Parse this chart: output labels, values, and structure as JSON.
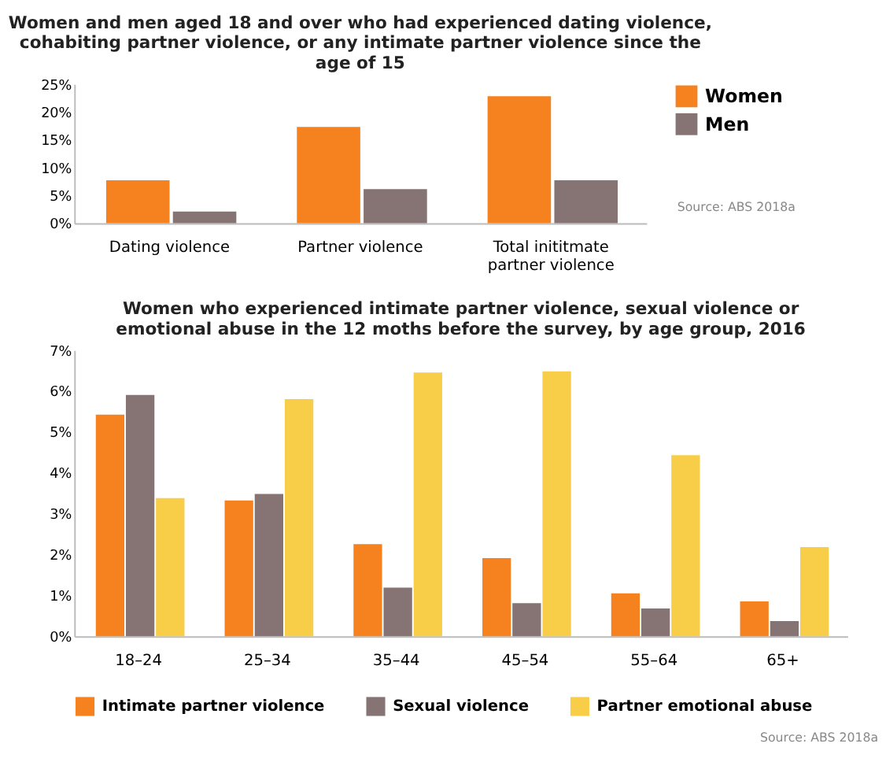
{
  "chart_data": [
    {
      "type": "bar",
      "title": "Women and men aged 18 and over who had experienced dating violence, cohabiting partner violence, or any intimate partner violence since the age of 15",
      "categories": [
        "Dating violence",
        "Partner violence",
        "Total inititmate partner violence"
      ],
      "series": [
        {
          "name": "Women",
          "color": "#f5821f",
          "values": [
            7.7,
            17.3,
            22.8
          ]
        },
        {
          "name": "Men",
          "color": "#857473",
          "values": [
            2.1,
            6.1,
            7.7
          ]
        }
      ],
      "ylim": [
        0,
        25
      ],
      "yticks": [
        {
          "value": 0,
          "label": "0%"
        },
        {
          "value": 5,
          "label": "5%"
        },
        {
          "value": 10,
          "label": "10%"
        },
        {
          "value": 15,
          "label": "15%"
        },
        {
          "value": 20,
          "label": "20%"
        },
        {
          "value": 25,
          "label": "25%"
        }
      ],
      "grid": false,
      "legend": "right",
      "annotations": [
        "Source: ABS 2018a"
      ]
    },
    {
      "type": "bar",
      "title": "Women who experienced intimate partner violence, sexual violence or emotional abuse in the 12 moths before the survey, by age group, 2016",
      "categories": [
        "18–24",
        "25–34",
        "35–44",
        "45–54",
        "55–64",
        "65+"
      ],
      "series": [
        {
          "name": "Intimate partner violence",
          "color": "#f5821f",
          "values": [
            5.42,
            3.32,
            2.25,
            1.91,
            1.05,
            0.85
          ]
        },
        {
          "name": "Sexual violence",
          "color": "#857473",
          "values": [
            5.9,
            3.48,
            1.19,
            0.81,
            0.68,
            0.37
          ]
        },
        {
          "name": "Partner emotional abuse",
          "color": "#f8cd48",
          "values": [
            3.38,
            5.8,
            6.45,
            6.48,
            4.43,
            2.18
          ]
        }
      ],
      "ylim": [
        0,
        7
      ],
      "yticks": [
        {
          "value": 0,
          "label": "0%"
        },
        {
          "value": 1,
          "label": "1%"
        },
        {
          "value": 2,
          "label": "2%"
        },
        {
          "value": 3,
          "label": "3%"
        },
        {
          "value": 4,
          "label": "4%"
        },
        {
          "value": 5,
          "label": "5%"
        },
        {
          "value": 6,
          "label": "6%"
        },
        {
          "value": 7,
          "label": "7%"
        }
      ],
      "grid": false,
      "legend": "bottom",
      "annotations": [
        "Source: ABS 2018a"
      ]
    }
  ]
}
